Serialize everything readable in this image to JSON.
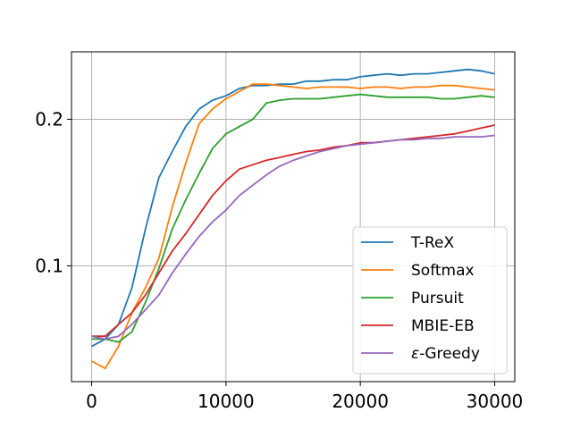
{
  "chart_data": {
    "type": "line",
    "title": "",
    "xlabel": "",
    "ylabel": "",
    "xlim": [
      -1500,
      31500
    ],
    "ylim": [
      0.021,
      0.246
    ],
    "xticks": [
      0,
      10000,
      20000,
      30000
    ],
    "xtick_labels": [
      "0",
      "10000",
      "20000",
      "30000"
    ],
    "yticks": [
      0.1,
      0.2
    ],
    "ytick_labels": [
      "0.1",
      "0.2"
    ],
    "grid": true,
    "legend_position": "lower-right",
    "series": [
      {
        "name": "T-ReX",
        "color": "#1f77b4",
        "x": [
          0,
          1000,
          2000,
          3000,
          4000,
          5000,
          6000,
          7000,
          8000,
          9000,
          10000,
          11000,
          12000,
          13000,
          14000,
          15000,
          16000,
          17000,
          18000,
          19000,
          20000,
          21000,
          22000,
          23000,
          24000,
          25000,
          26000,
          27000,
          28000,
          29000,
          30000
        ],
        "y": [
          0.045,
          0.05,
          0.06,
          0.085,
          0.125,
          0.16,
          0.178,
          0.195,
          0.207,
          0.213,
          0.216,
          0.221,
          0.223,
          0.223,
          0.224,
          0.224,
          0.226,
          0.226,
          0.227,
          0.227,
          0.229,
          0.23,
          0.231,
          0.23,
          0.231,
          0.231,
          0.232,
          0.233,
          0.234,
          0.233,
          0.231
        ]
      },
      {
        "name": "Softmax",
        "color": "#ff7f0e",
        "x": [
          0,
          1000,
          2000,
          3000,
          4000,
          5000,
          6000,
          7000,
          8000,
          9000,
          10000,
          11000,
          12000,
          13000,
          14000,
          15000,
          16000,
          17000,
          18000,
          19000,
          20000,
          21000,
          22000,
          23000,
          24000,
          25000,
          26000,
          27000,
          28000,
          29000,
          30000
        ],
        "y": [
          0.035,
          0.03,
          0.045,
          0.068,
          0.085,
          0.105,
          0.14,
          0.17,
          0.197,
          0.207,
          0.214,
          0.219,
          0.224,
          0.224,
          0.223,
          0.222,
          0.221,
          0.222,
          0.222,
          0.222,
          0.221,
          0.222,
          0.222,
          0.221,
          0.222,
          0.222,
          0.223,
          0.223,
          0.222,
          0.221,
          0.22
        ]
      },
      {
        "name": "Pursuit",
        "color": "#2ca02c",
        "x": [
          0,
          1000,
          2000,
          3000,
          4000,
          5000,
          6000,
          7000,
          8000,
          9000,
          10000,
          11000,
          12000,
          13000,
          14000,
          15000,
          16000,
          17000,
          18000,
          19000,
          20000,
          21000,
          22000,
          23000,
          24000,
          25000,
          26000,
          27000,
          28000,
          29000,
          30000
        ],
        "y": [
          0.05,
          0.05,
          0.048,
          0.055,
          0.075,
          0.098,
          0.125,
          0.145,
          0.163,
          0.18,
          0.19,
          0.195,
          0.2,
          0.211,
          0.213,
          0.214,
          0.214,
          0.214,
          0.215,
          0.216,
          0.217,
          0.216,
          0.215,
          0.215,
          0.215,
          0.215,
          0.214,
          0.214,
          0.215,
          0.216,
          0.215
        ]
      },
      {
        "name": "MBIE-EB",
        "color": "#d62728",
        "x": [
          0,
          1000,
          2000,
          3000,
          4000,
          5000,
          6000,
          7000,
          8000,
          9000,
          10000,
          11000,
          12000,
          13000,
          14000,
          15000,
          16000,
          17000,
          18000,
          19000,
          20000,
          21000,
          22000,
          23000,
          24000,
          25000,
          26000,
          27000,
          28000,
          29000,
          30000
        ],
        "y": [
          0.052,
          0.052,
          0.06,
          0.068,
          0.08,
          0.095,
          0.11,
          0.122,
          0.135,
          0.148,
          0.158,
          0.166,
          0.169,
          0.172,
          0.174,
          0.176,
          0.178,
          0.179,
          0.181,
          0.182,
          0.184,
          0.184,
          0.185,
          0.186,
          0.187,
          0.188,
          0.189,
          0.19,
          0.192,
          0.194,
          0.196
        ]
      },
      {
        "name": "ε-Greedy",
        "color": "#9467bd",
        "x": [
          0,
          1000,
          2000,
          3000,
          4000,
          5000,
          6000,
          7000,
          8000,
          9000,
          10000,
          11000,
          12000,
          13000,
          14000,
          15000,
          16000,
          17000,
          18000,
          19000,
          20000,
          21000,
          22000,
          23000,
          24000,
          25000,
          26000,
          27000,
          28000,
          29000,
          30000
        ],
        "y": [
          0.052,
          0.05,
          0.052,
          0.06,
          0.07,
          0.08,
          0.095,
          0.108,
          0.12,
          0.13,
          0.138,
          0.148,
          0.155,
          0.162,
          0.168,
          0.172,
          0.175,
          0.178,
          0.18,
          0.182,
          0.183,
          0.184,
          0.185,
          0.186,
          0.186,
          0.187,
          0.187,
          0.188,
          0.188,
          0.188,
          0.189
        ]
      }
    ],
    "legend_entries": [
      {
        "prefix": "",
        "italic": "",
        "suffix": "T-ReX"
      },
      {
        "prefix": "",
        "italic": "",
        "suffix": "Softmax"
      },
      {
        "prefix": "",
        "italic": "",
        "suffix": "Pursuit"
      },
      {
        "prefix": "",
        "italic": "",
        "suffix": "MBIE-EB"
      },
      {
        "prefix": "",
        "italic": "ε",
        "suffix": "-Greedy"
      }
    ]
  }
}
